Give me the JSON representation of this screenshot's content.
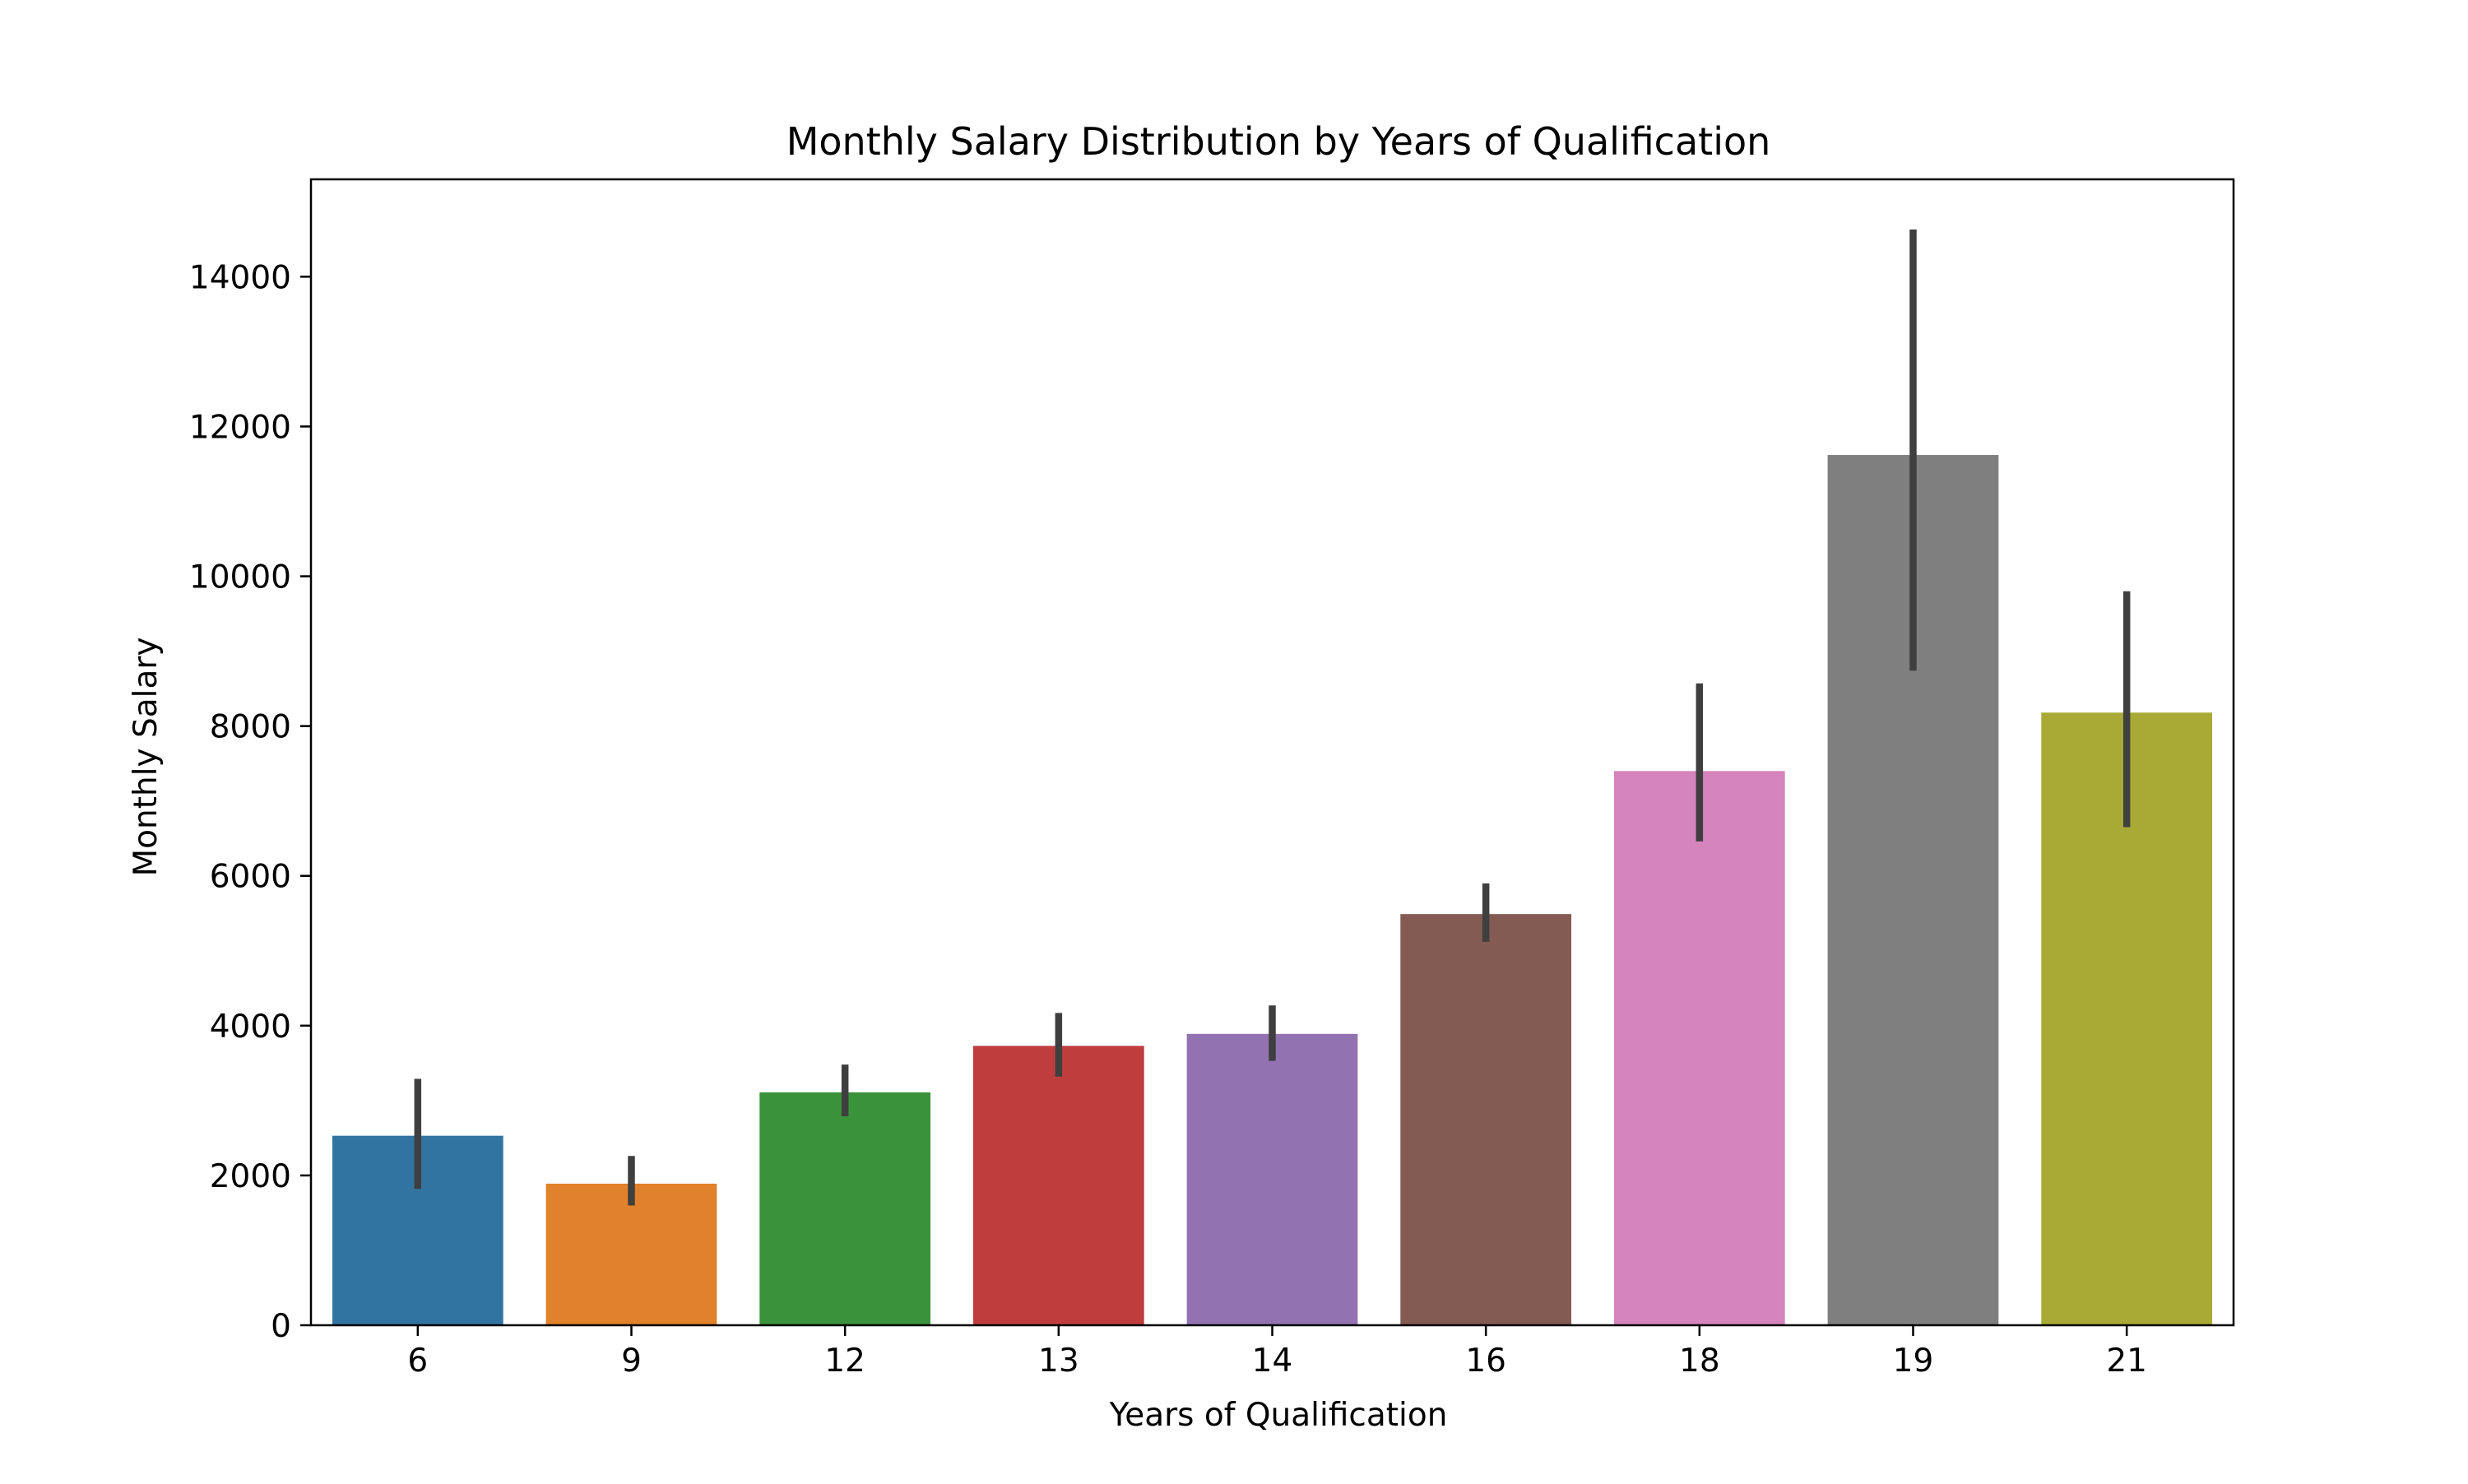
{
  "chart_data": {
    "type": "bar",
    "title": "Monthly Salary Distribution by Years of Qualification",
    "xlabel": "Years of Qualification",
    "ylabel": "Monthly Salary",
    "categories": [
      "6",
      "9",
      "12",
      "13",
      "14",
      "16",
      "18",
      "19",
      "21"
    ],
    "values": [
      2530,
      1890,
      3110,
      3730,
      3890,
      5490,
      7400,
      11620,
      8180
    ],
    "error_low": [
      1820,
      1600,
      2790,
      3320,
      3530,
      5120,
      6460,
      8740,
      6650
    ],
    "error_high": [
      3290,
      2260,
      3480,
      4170,
      4270,
      5900,
      8570,
      14630,
      9800
    ],
    "colors": [
      "#3274a1",
      "#e1812c",
      "#3a923a",
      "#c03d3e",
      "#9372b2",
      "#845b53",
      "#d684bd",
      "#7f7f7f",
      "#a9aa35"
    ],
    "error_color": "#3f3f3f",
    "ylim": [
      0,
      15300
    ],
    "yticks": [
      0,
      2000,
      4000,
      6000,
      8000,
      10000,
      12000,
      14000
    ],
    "grid": false,
    "legend": "none"
  }
}
